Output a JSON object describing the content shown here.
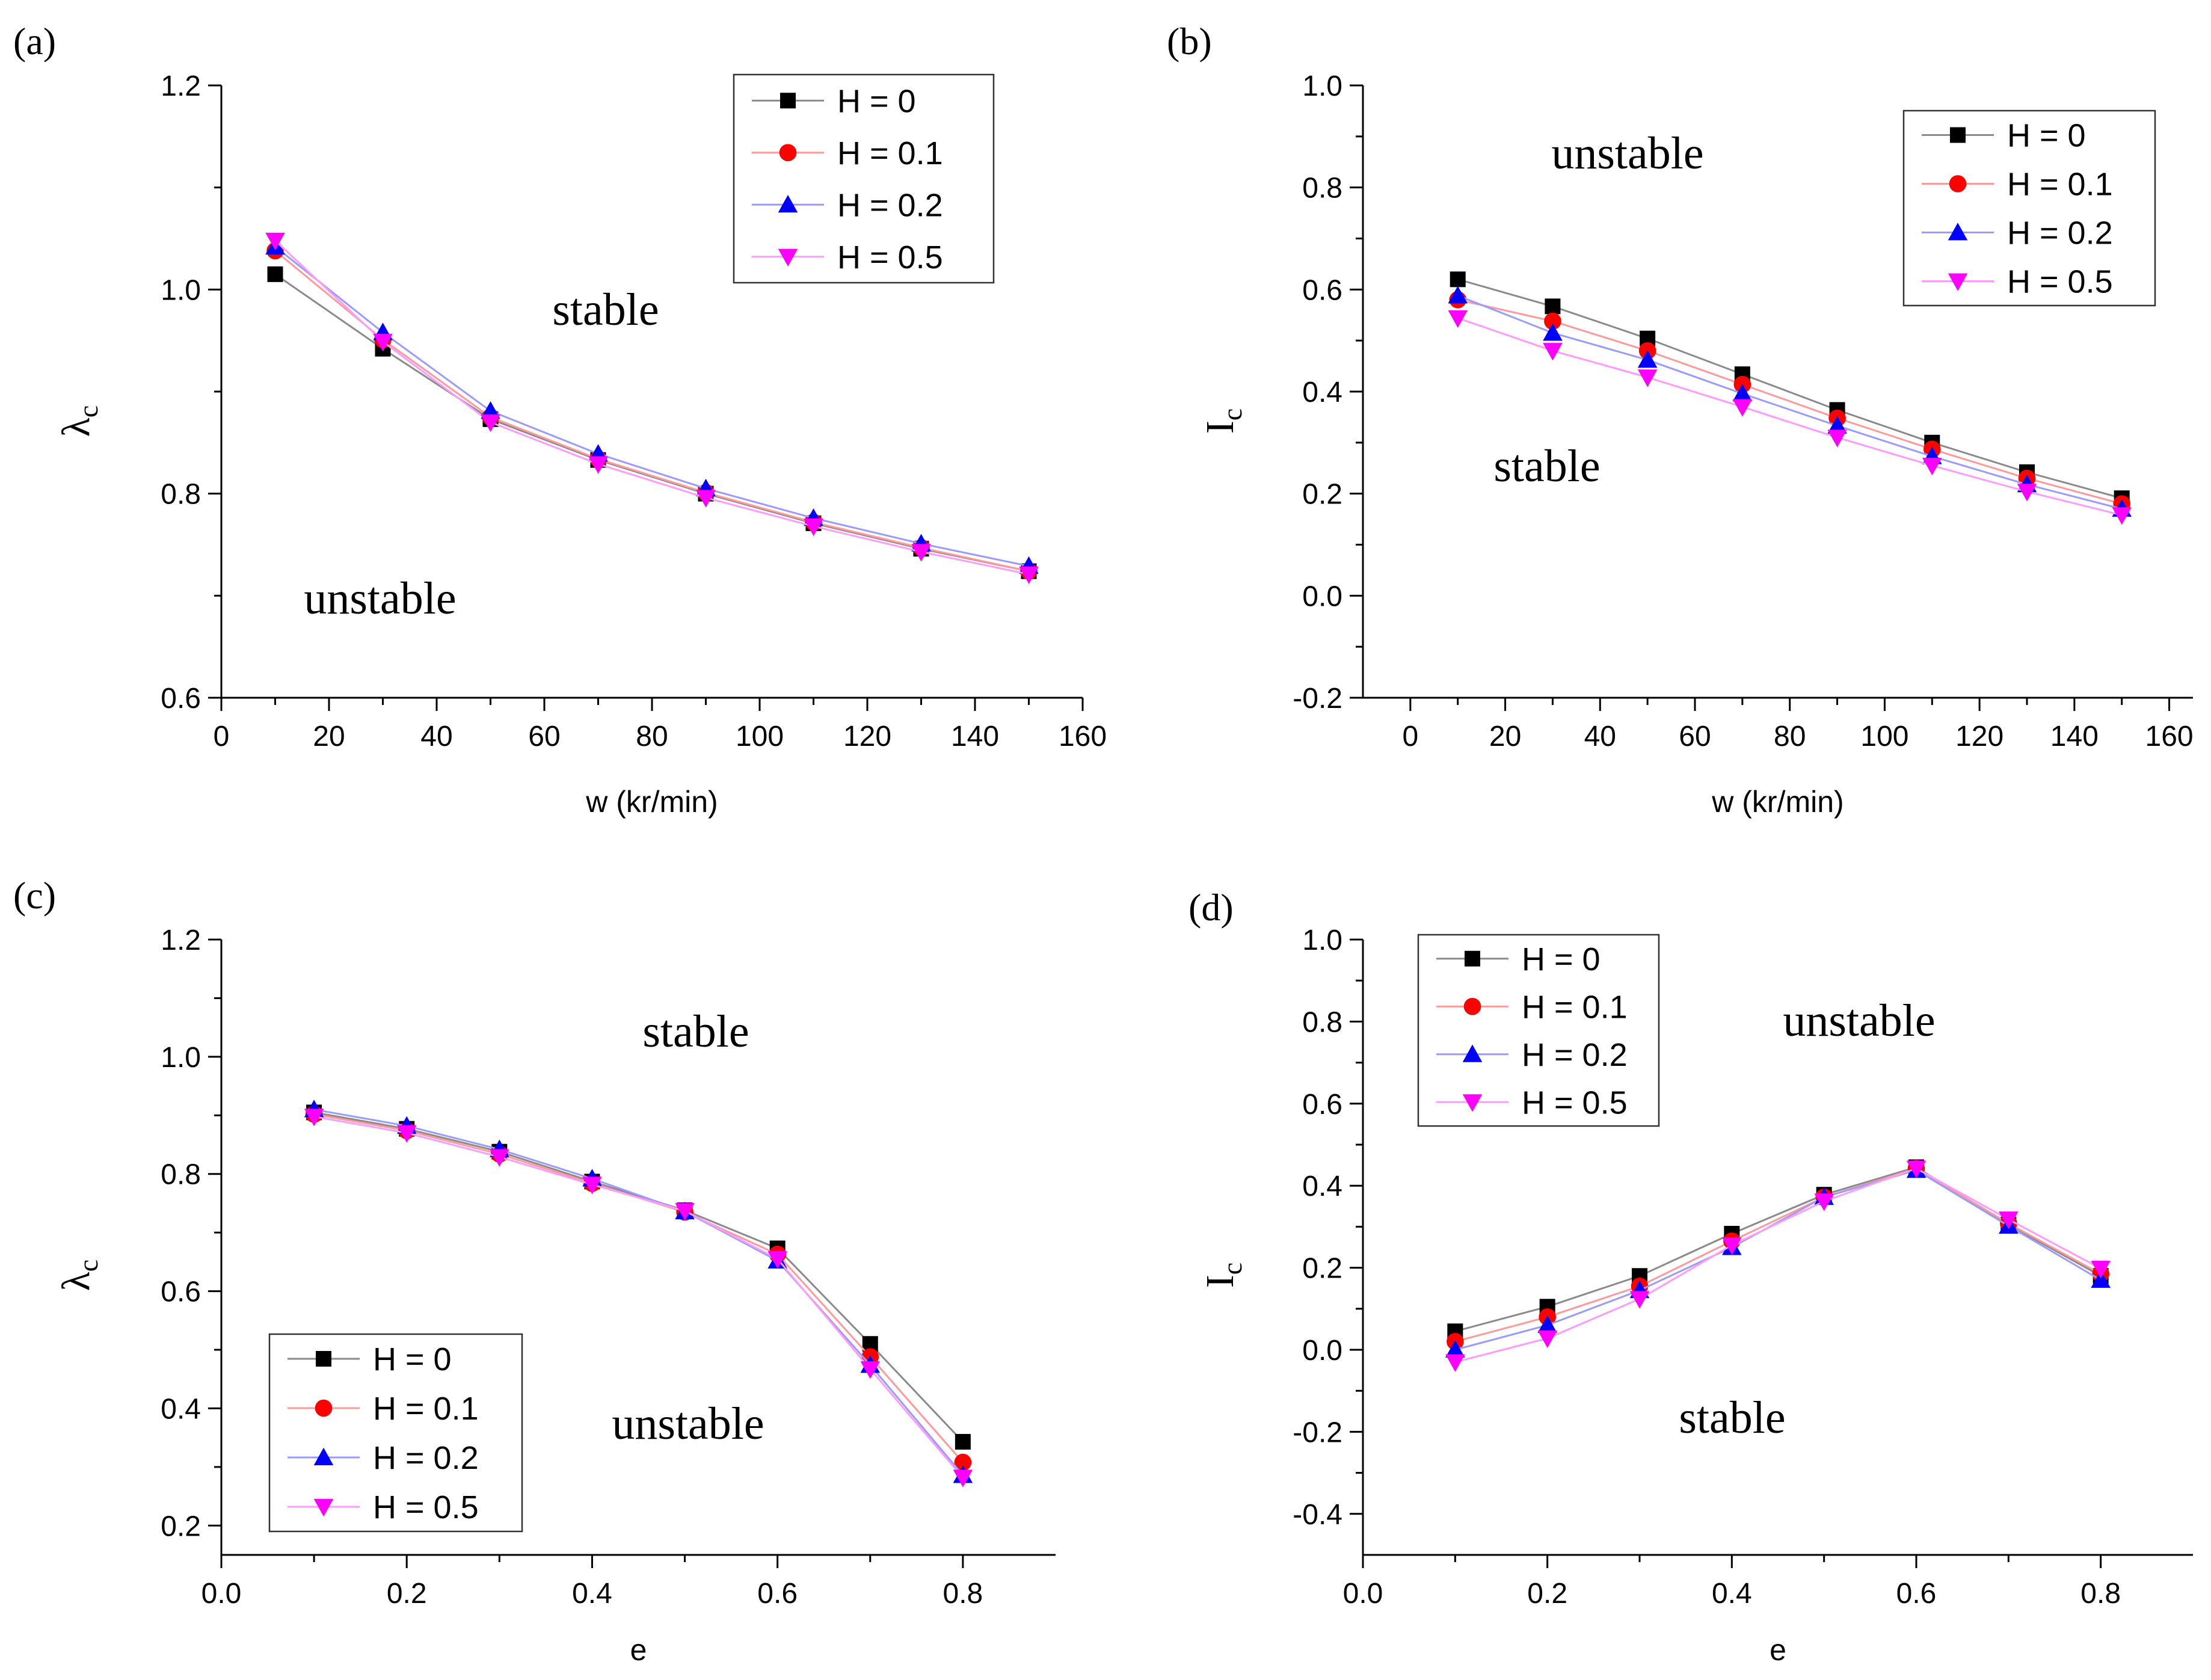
{
  "colors": {
    "H = 0": "#000000",
    "H = 0.1": "#ff0000",
    "H = 0.2": "#0000ff",
    "H = 0.5": "#ff00ff"
  },
  "line_colors": {
    "H = 0": "#8a8a8a",
    "H = 0.1": "#ff9a9a",
    "H = 0.2": "#9a9aff",
    "H = 0.5": "#ff9aff"
  },
  "markers": {
    "H = 0": "square",
    "H = 0.1": "circle",
    "H = 0.2": "triangle-up",
    "H = 0.5": "triangle-down"
  },
  "chart_data": [
    {
      "panel": "(a)",
      "type": "line",
      "xlabel": "w (kr/min)",
      "ylabel": "λc",
      "ylabel_main": "λ",
      "ylabel_sub": "c",
      "xlim": [
        0,
        160
      ],
      "ylim": [
        0.6,
        1.2
      ],
      "xticks": [
        0,
        20,
        40,
        60,
        80,
        100,
        120,
        140,
        160
      ],
      "xtick_labels": [
        "0",
        "20",
        "40",
        "60",
        "80",
        "100",
        "120",
        "140",
        "160"
      ],
      "yticks": [
        0.6,
        0.8,
        1.0,
        1.2
      ],
      "ytick_labels": [
        "0.6",
        "0.8",
        "1.0",
        "1.2"
      ],
      "legend_position": "top-right",
      "annotations": [
        "stable",
        "unstable"
      ],
      "x": [
        10,
        30,
        50,
        70,
        90,
        110,
        130,
        150
      ],
      "series": [
        {
          "name": "H = 0",
          "values": [
            1.015,
            0.942,
            0.873,
            0.833,
            0.8,
            0.771,
            0.746,
            0.724
          ]
        },
        {
          "name": "H = 0.1",
          "values": [
            1.038,
            0.951,
            0.875,
            0.834,
            0.801,
            0.772,
            0.747,
            0.724
          ]
        },
        {
          "name": "H = 0.2",
          "values": [
            1.042,
            0.958,
            0.881,
            0.839,
            0.805,
            0.776,
            0.751,
            0.729
          ]
        },
        {
          "name": "H = 0.5",
          "values": [
            1.048,
            0.949,
            0.87,
            0.829,
            0.796,
            0.768,
            0.743,
            0.721
          ]
        }
      ]
    },
    {
      "panel": "(b)",
      "type": "line",
      "xlabel": "w (kr/min)",
      "ylabel": "Ic",
      "ylabel_main": "I",
      "ylabel_sub": "c",
      "xlim": [
        -10,
        165
      ],
      "ylim": [
        -0.2,
        1.0
      ],
      "xticks": [
        0,
        20,
        40,
        60,
        80,
        100,
        120,
        140,
        160
      ],
      "xtick_labels": [
        "0",
        "20",
        "40",
        "60",
        "80",
        "100",
        "120",
        "140",
        "160"
      ],
      "yticks": [
        -0.2,
        0.0,
        0.2,
        0.4,
        0.6,
        0.8,
        1.0
      ],
      "ytick_labels": [
        "-0.2",
        "0.0",
        "0.2",
        "0.4",
        "0.6",
        "0.8",
        "1.0"
      ],
      "legend_position": "top-right",
      "annotations": [
        "unstable",
        "stable"
      ],
      "x": [
        10,
        30,
        50,
        70,
        90,
        110,
        130,
        150
      ],
      "series": [
        {
          "name": "H = 0",
          "values": [
            0.62,
            0.567,
            0.504,
            0.434,
            0.364,
            0.3,
            0.242,
            0.191
          ]
        },
        {
          "name": "H = 0.1",
          "values": [
            0.58,
            0.538,
            0.48,
            0.414,
            0.348,
            0.287,
            0.23,
            0.18
          ]
        },
        {
          "name": "H = 0.2",
          "values": [
            0.588,
            0.515,
            0.462,
            0.396,
            0.333,
            0.273,
            0.218,
            0.17
          ]
        },
        {
          "name": "H = 0.5",
          "values": [
            0.544,
            0.48,
            0.428,
            0.37,
            0.31,
            0.255,
            0.204,
            0.158
          ]
        }
      ]
    },
    {
      "panel": "(c)",
      "type": "line",
      "xlabel": "e",
      "ylabel": "λc",
      "ylabel_main": "λ",
      "ylabel_sub": "c",
      "xlim": [
        0.0,
        0.9
      ],
      "ylim": [
        0.15,
        1.2
      ],
      "xticks": [
        0.0,
        0.2,
        0.4,
        0.6,
        0.8
      ],
      "xtick_labels": [
        "0.0",
        "0.2",
        "0.4",
        "0.6",
        "0.8"
      ],
      "yticks": [
        0.2,
        0.4,
        0.6,
        0.8,
        1.0,
        1.2
      ],
      "ytick_labels": [
        "0.2",
        "0.4",
        "0.6",
        "0.8",
        "1.0",
        "1.2"
      ],
      "legend_position": "bottom-left",
      "annotations": [
        "stable",
        "unstable"
      ],
      "x": [
        0.1,
        0.2,
        0.3,
        0.4,
        0.5,
        0.6,
        0.7,
        0.8
      ],
      "series": [
        {
          "name": "H = 0",
          "values": [
            0.905,
            0.877,
            0.838,
            0.787,
            0.738,
            0.673,
            0.51,
            0.343
          ]
        },
        {
          "name": "H = 0.1",
          "values": [
            0.902,
            0.874,
            0.834,
            0.784,
            0.735,
            0.663,
            0.488,
            0.308
          ]
        },
        {
          "name": "H = 0.2",
          "values": [
            0.91,
            0.882,
            0.842,
            0.792,
            0.736,
            0.652,
            0.474,
            0.286
          ]
        },
        {
          "name": "H = 0.5",
          "values": [
            0.898,
            0.87,
            0.829,
            0.782,
            0.737,
            0.655,
            0.467,
            0.282
          ]
        }
      ]
    },
    {
      "panel": "(d)",
      "type": "line",
      "xlabel": "e",
      "ylabel": "Ic",
      "ylabel_main": "I",
      "ylabel_sub": "c",
      "xlim": [
        0.0,
        0.9
      ],
      "ylim": [
        -0.5,
        1.0
      ],
      "xticks": [
        0.0,
        0.2,
        0.4,
        0.6,
        0.8
      ],
      "xtick_labels": [
        "0.0",
        "0.2",
        "0.4",
        "0.6",
        "0.8"
      ],
      "yticks": [
        -0.4,
        -0.2,
        0.0,
        0.2,
        0.4,
        0.6,
        0.8,
        1.0
      ],
      "ytick_labels": [
        "-0.4",
        "-0.2",
        "0.0",
        "0.2",
        "0.4",
        "0.6",
        "0.8",
        "1.0"
      ],
      "legend_position": "top-left",
      "annotations": [
        "unstable",
        "stable"
      ],
      "x": [
        0.1,
        0.2,
        0.3,
        0.4,
        0.5,
        0.6,
        0.7,
        0.8
      ],
      "series": [
        {
          "name": "H = 0",
          "values": [
            0.045,
            0.105,
            0.18,
            0.283,
            0.378,
            0.445,
            0.305,
            0.18
          ]
        },
        {
          "name": "H = 0.1",
          "values": [
            0.02,
            0.08,
            0.155,
            0.265,
            0.372,
            0.442,
            0.308,
            0.185
          ]
        },
        {
          "name": "H = 0.2",
          "values": [
            0.0,
            0.06,
            0.145,
            0.25,
            0.372,
            0.438,
            0.302,
            0.17
          ]
        },
        {
          "name": "H = 0.5",
          "values": [
            -0.03,
            0.028,
            0.124,
            0.255,
            0.362,
            0.442,
            0.318,
            0.198
          ]
        }
      ]
    }
  ]
}
